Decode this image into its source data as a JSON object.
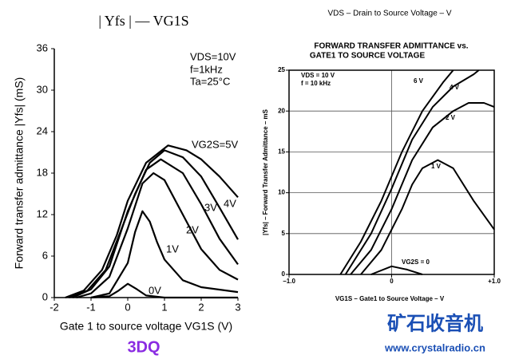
{
  "header": "VDS – Drain to Source Voltage – V",
  "watermarks": [
    "3DQ",
    "矿石收音机",
    "www.crystalradio.cn"
  ],
  "chart_data": [
    {
      "type": "line",
      "title": [
        "| Yfs | — VG1S"
      ],
      "x_label": "Gate 1 to source voltage  VG1S  (V)",
      "y_label": "Forward transfer admittance  |Yfs|  (mS)",
      "annotations": [
        "VDS=10V",
        "f=1kHz",
        "Ta=25°C"
      ],
      "xlim": [
        -2,
        3
      ],
      "xticks": [
        -2,
        -1,
        0,
        1,
        2,
        3
      ],
      "ylim": [
        0,
        36
      ],
      "yticks": [
        0,
        6,
        12,
        18,
        24,
        30,
        36
      ],
      "grid": false,
      "series": [
        {
          "name": "VG2S=5V",
          "color": "#000000",
          "x": [
            -1.7,
            -1.2,
            -0.7,
            -0.3,
            0,
            0.5,
            1.1,
            1.6,
            2,
            2.5,
            3
          ],
          "values": [
            0,
            1,
            4,
            9,
            14,
            19.5,
            22,
            21.3,
            20,
            17.5,
            14.5
          ]
        },
        {
          "name": "4V",
          "color": "#000000",
          "x": [
            -1.6,
            -1.1,
            -0.6,
            -0.2,
            0.2,
            0.6,
            1,
            1.5,
            2,
            2.5,
            3
          ],
          "values": [
            0,
            1,
            4,
            9.5,
            15,
            19.5,
            21.3,
            20.3,
            17.5,
            13,
            8.4
          ]
        },
        {
          "name": "3V",
          "color": "#000000",
          "x": [
            -1.5,
            -1,
            -0.5,
            0,
            0.5,
            0.9,
            1.5,
            2,
            2.5,
            3
          ],
          "values": [
            0,
            1.2,
            4.5,
            12.5,
            18.5,
            20,
            18,
            13.5,
            8.5,
            4.8
          ]
        },
        {
          "name": "2V",
          "color": "#000000",
          "x": [
            -1.4,
            -1,
            -0.5,
            0,
            0.4,
            0.7,
            1,
            1.5,
            2,
            2.5,
            3
          ],
          "values": [
            0,
            0.6,
            3,
            10,
            16.5,
            18,
            17,
            12,
            7,
            4,
            2.6
          ]
        },
        {
          "name": "1V",
          "color": "#000000",
          "x": [
            -1,
            -0.5,
            0,
            0.2,
            0.4,
            0.6,
            0.8,
            1,
            1.5,
            2,
            3
          ],
          "values": [
            0,
            0.6,
            5,
            9.5,
            12.5,
            11,
            8,
            5.5,
            2.5,
            1.5,
            0.8
          ]
        },
        {
          "name": "0V",
          "color": "#000000",
          "x": [
            -1,
            -0.5,
            -0.25,
            0,
            0.25,
            0.5,
            1,
            3
          ],
          "values": [
            0,
            0.2,
            1,
            2,
            1.2,
            0.3,
            0,
            0
          ]
        }
      ]
    },
    {
      "type": "line",
      "title": [
        "FORWARD TRANSFER ADMITTANCE vs.",
        "GATE1 TO SOURCE VOLTAGE"
      ],
      "x_label": "VG1S – Gate1 to Source Voltage – V",
      "y_label": "|Yfs| – Forward Transfer Admittance – mS",
      "annotations": [
        "VDS = 10 V",
        "f = 10 kHz"
      ],
      "xlim": [
        -1,
        1
      ],
      "xticks": [
        {
          "value": -1,
          "label": "−1.0"
        },
        0,
        {
          "value": 1,
          "label": "+1.0"
        }
      ],
      "ylim": [
        0,
        25
      ],
      "yticks": [
        0,
        5,
        10,
        15,
        20,
        25
      ],
      "grid": true,
      "series": [
        {
          "name": "6 V",
          "color": "#000000",
          "x": [
            -0.5,
            -0.3,
            -0.1,
            0.1,
            0.3,
            0.5,
            0.6
          ],
          "values": [
            0,
            4,
            9,
            15,
            20,
            23.5,
            25
          ]
        },
        {
          "name": "4 V",
          "color": "#000000",
          "x": [
            -0.45,
            -0.2,
            0,
            0.2,
            0.4,
            0.6,
            0.8,
            0.85
          ],
          "values": [
            0,
            5,
            10.5,
            16.5,
            20.5,
            23,
            24.5,
            25
          ]
        },
        {
          "name": "2 V",
          "color": "#000000",
          "x": [
            -0.4,
            -0.2,
            0,
            0.2,
            0.4,
            0.6,
            0.75,
            0.9,
            1
          ],
          "values": [
            0,
            3,
            8,
            14,
            18,
            20,
            21,
            21,
            20.5
          ]
        },
        {
          "name": "1 V",
          "color": "#000000",
          "x": [
            -0.3,
            -0.1,
            0,
            0.1,
            0.2,
            0.3,
            0.45,
            0.6,
            0.8,
            1
          ],
          "values": [
            0,
            3,
            5.5,
            8,
            11,
            13,
            14,
            13,
            9,
            5.5
          ]
        },
        {
          "name": "VG2S = 0",
          "color": "#000000",
          "x": [
            -0.2,
            0,
            0.15,
            0.3
          ],
          "values": [
            0,
            1,
            0.6,
            0
          ]
        }
      ]
    }
  ]
}
